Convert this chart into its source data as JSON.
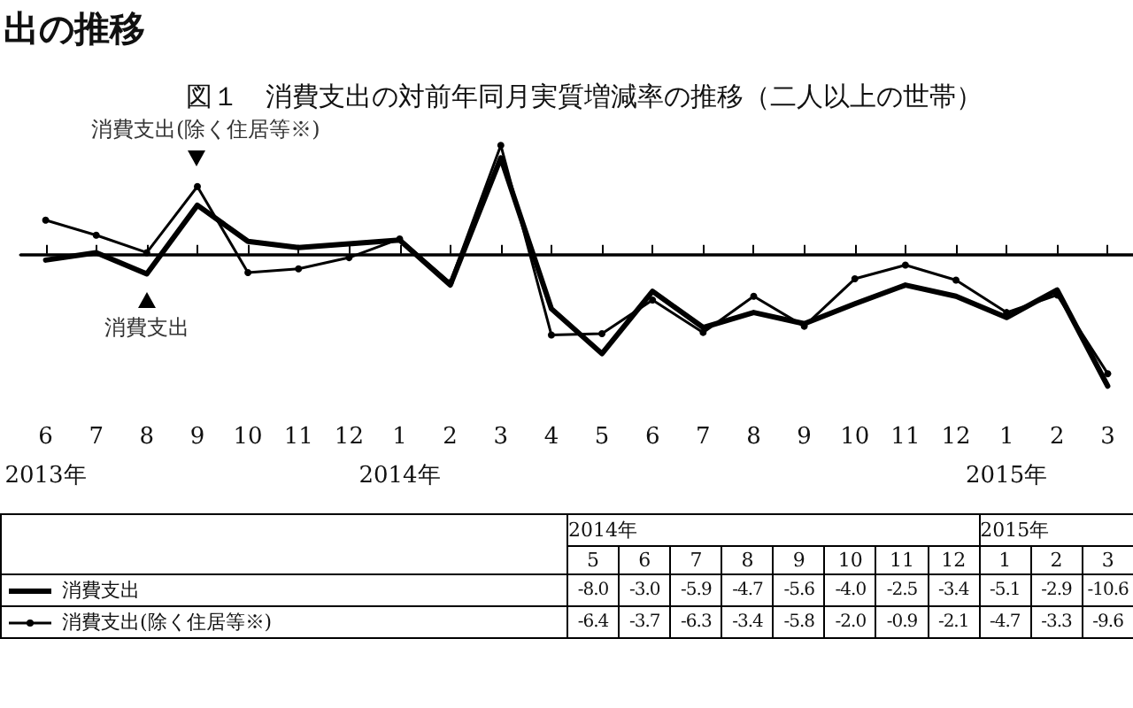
{
  "chart_data": {
    "type": "line",
    "title": "図１　消費支出の対前年同月実質増減率の推移（二人以上の世帯）",
    "annotations": [
      "出の推移",
      "2014年",
      "2015年"
    ],
    "categories": [
      "6\n2013年",
      "7",
      "8",
      "9",
      "10",
      "11",
      "12",
      "1\n2014年",
      "2",
      "3",
      "4",
      "5",
      "6",
      "7",
      "8",
      "9",
      "10",
      "11",
      "12",
      "1\n2015年",
      "2",
      "3"
    ],
    "series": [
      {
        "name": "消費支出",
        "color": "#000000",
        "marker": "none",
        "values": [
          -0.5,
          0.1,
          -1.6,
          3.9,
          1.0,
          0.5,
          0.8,
          1.1,
          -2.5,
          7.7,
          -4.4,
          -8.0,
          -3.0,
          -5.9,
          -4.7,
          -5.6,
          -4.0,
          -2.5,
          -3.4,
          -5.1,
          -2.9,
          -10.6
        ],
        "value_labels": [
          null,
          null,
          null,
          null,
          null,
          null,
          null,
          null,
          null,
          null,
          null,
          "-8.0",
          "-3.0",
          "-5.9",
          "-4.7",
          "-5.6",
          "-4.0",
          "-2.5",
          "-3.4",
          "-5.1",
          "-2.9",
          "-10.6"
        ]
      },
      {
        "name": "消費支出(除く住居等※)",
        "color": "#000000",
        "marker": "circle",
        "values": [
          2.7,
          1.5,
          0.1,
          5.4,
          -1.5,
          -1.2,
          -0.3,
          1.2,
          -2.3,
          8.7,
          -6.5,
          -6.4,
          -3.7,
          -6.3,
          -3.4,
          -5.8,
          -2.0,
          -0.9,
          -2.1,
          -4.7,
          -3.3,
          -9.6
        ],
        "value_labels": [
          null,
          null,
          null,
          null,
          null,
          null,
          null,
          null,
          null,
          null,
          null,
          "-6.4",
          "-3.7",
          "-6.3",
          "-3.4",
          "-5.8",
          "-2.0",
          "-0.9",
          "-2.1",
          "-4.7",
          "-3.3",
          "-9.6"
        ]
      }
    ],
    "tick_labels": "x",
    "grid": false,
    "legend": "bottom left",
    "line_style": "solid",
    "ref_lines": [
      {
        "axis": "y",
        "value": 0,
        "color": "#000000"
      }
    ]
  }
}
